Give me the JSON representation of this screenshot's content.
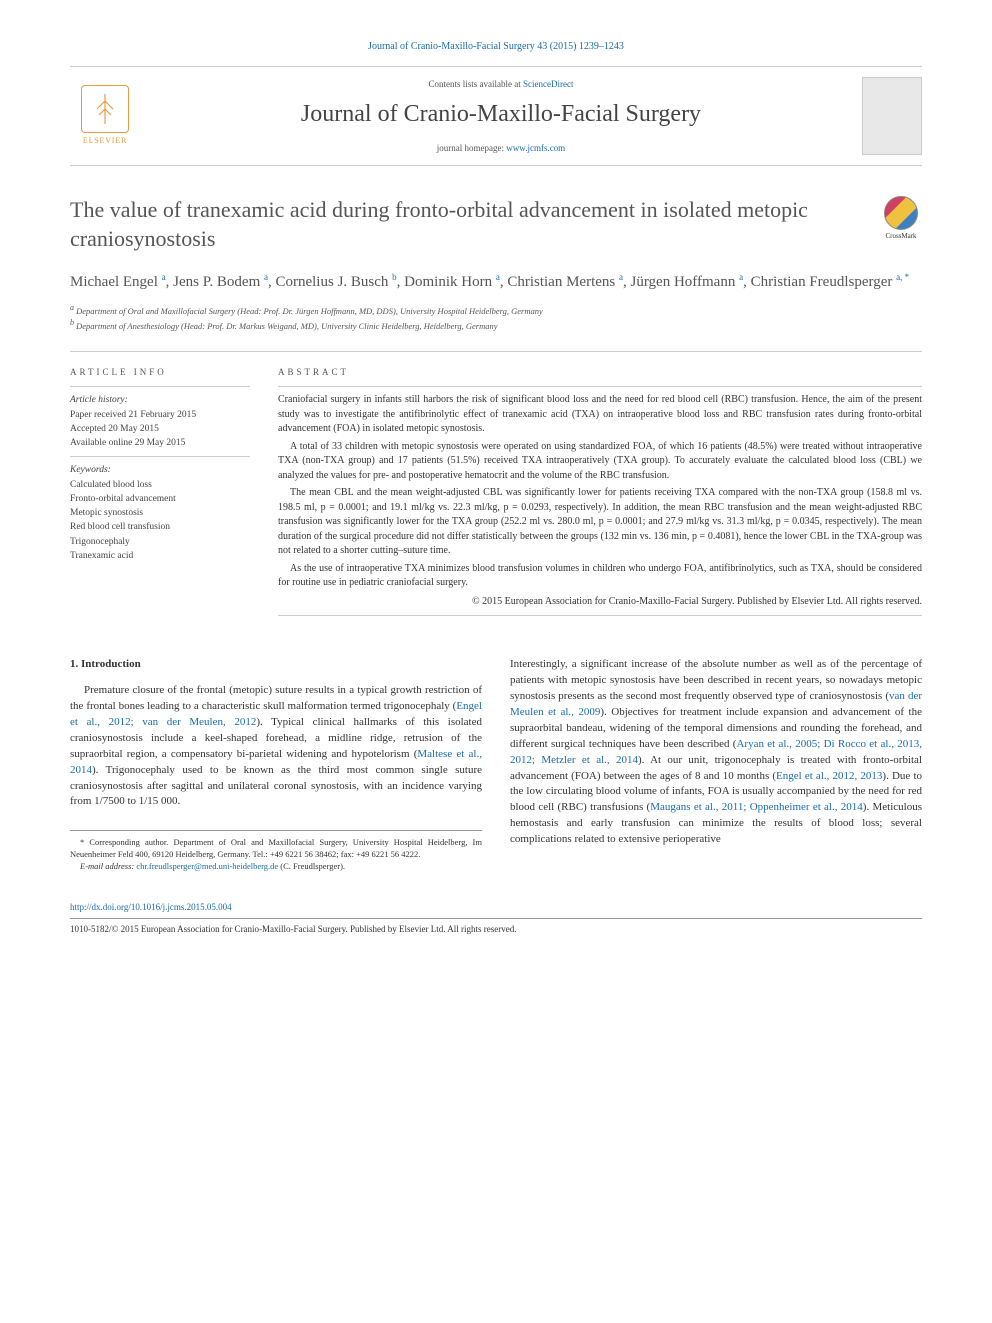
{
  "citation": "Journal of Cranio-Maxillo-Facial Surgery 43 (2015) 1239–1243",
  "masthead": {
    "contents_prefix": "Contents lists available at ",
    "contents_link": "ScienceDirect",
    "journal_name": "Journal of Cranio-Maxillo-Facial Surgery",
    "homepage_prefix": "journal homepage: ",
    "homepage_link": "www.jcmfs.com",
    "publisher_label": "ELSEVIER"
  },
  "crossmark_label": "CrossMark",
  "title": "The value of tranexamic acid during fronto-orbital advancement in isolated metopic craniosynostosis",
  "authors_html": "Michael Engel <sup>a</sup>, Jens P. Bodem <sup>a</sup>, Cornelius J. Busch <sup>b</sup>, Dominik Horn <sup>a</sup>, Christian Mertens <sup>a</sup>, Jürgen Hoffmann <sup>a</sup>, Christian Freudlsperger <sup>a, *</sup>",
  "affiliations": {
    "a": "Department of Oral and Maxillofacial Surgery (Head: Prof. Dr. Jürgen Hoffmann, MD, DDS), University Hospital Heidelberg, Germany",
    "b": "Department of Anesthesiology (Head: Prof. Dr. Markus Weigand, MD), University Clinic Heidelberg, Heidelberg, Germany"
  },
  "article_info": {
    "label": "ARTICLE INFO",
    "history_label": "Article history:",
    "history": [
      "Paper received 21 February 2015",
      "Accepted 20 May 2015",
      "Available online 29 May 2015"
    ],
    "keywords_label": "Keywords:",
    "keywords": [
      "Calculated blood loss",
      "Fronto-orbital advancement",
      "Metopic synostosis",
      "Red blood cell transfusion",
      "Trigonocephaly",
      "Tranexamic acid"
    ]
  },
  "abstract": {
    "label": "ABSTRACT",
    "paragraphs": [
      "Craniofacial surgery in infants still harbors the risk of significant blood loss and the need for red blood cell (RBC) transfusion. Hence, the aim of the present study was to investigate the antifibrinolytic effect of tranexamic acid (TXA) on intraoperative blood loss and RBC transfusion rates during fronto-orbital advancement (FOA) in isolated metopic synostosis.",
      "A total of 33 children with metopic synostosis were operated on using standardized FOA, of which 16 patients (48.5%) were treated without intraoperative TXA (non-TXA group) and 17 patients (51.5%) received TXA intraoperatively (TXA group). To accurately evaluate the calculated blood loss (CBL) we analyzed the values for pre- and postoperative hematocrit and the volume of the RBC transfusion.",
      "The mean CBL and the mean weight-adjusted CBL was significantly lower for patients receiving TXA compared with the non-TXA group (158.8 ml vs. 198.5 ml, p = 0.0001; and 19.1 ml/kg vs. 22.3 ml/kg, p = 0.0293, respectively). In addition, the mean RBC transfusion and the mean weight-adjusted RBC transfusion was significantly lower for the TXA group (252.2 ml vs. 280.0 ml, p = 0.0001; and 27.9 ml/kg vs. 31.3 ml/kg, p = 0.0345, respectively). The mean duration of the surgical procedure did not differ statistically between the groups (132 min vs. 136 min, p = 0.4081), hence the lower CBL in the TXA-group was not related to a shorter cutting–suture time.",
      "As the use of intraoperative TXA minimizes blood transfusion volumes in children who undergo FOA, antifibrinolytics, such as TXA, should be considered for routine use in pediatric craniofacial surgery."
    ],
    "copyright": "© 2015 European Association for Cranio-Maxillo-Facial Surgery. Published by Elsevier Ltd. All rights reserved."
  },
  "section1": {
    "heading": "1. Introduction",
    "col1": "Premature closure of the frontal (metopic) suture results in a typical growth restriction of the frontal bones leading to a characteristic skull malformation termed trigonocephaly (<a>Engel et al., 2012; van der Meulen, 2012</a>). Typical clinical hallmarks of this isolated craniosynostosis include a keel-shaped forehead, a midline ridge, retrusion of the supraorbital region, a compensatory bi-parietal widening and hypotelorism (<a>Maltese et al., 2014</a>). Trigonocephaly used to be known as the third most common single suture craniosynostosis after sagittal and unilateral coronal synostosis, with an incidence varying from 1/7500 to 1/15 000.",
    "col2": "Interestingly, a significant increase of the absolute number as well as of the percentage of patients with metopic synostosis have been described in recent years, so nowadays metopic synostosis presents as the second most frequently observed type of craniosynostosis (<a>van der Meulen et al., 2009</a>). Objectives for treatment include expansion and advancement of the supraorbital bandeau, widening of the temporal dimensions and rounding the forehead, and different surgical techniques have been described (<a>Aryan et al., 2005; Di Rocco et al., 2013, 2012; Metzler et al., 2014</a>). At our unit, trigonocephaly is treated with fronto-orbital advancement (FOA) between the ages of 8 and 10 months (<a>Engel et al., 2012, 2013</a>). Due to the low circulating blood volume of infants, FOA is usually accompanied by the need for red blood cell (RBC) transfusions (<a>Maugans et al., 2011; Oppenheimer et al., 2014</a>). Meticulous hemostasis and early transfusion can minimize the results of blood loss; several complications related to extensive perioperative"
  },
  "corr_note": {
    "text": "* Corresponding author. Department of Oral and Maxillofacial Surgery, University Hospital Heidelberg, Im Neuenheimer Feld 400, 69120 Heidelberg, Germany. Tel.: +49 6221 56 38462; fax: +49 6221 56 4222.",
    "email_label": "E-mail address:",
    "email": "chr.freudlsperger@med.uni-heidelberg.de",
    "email_name": "(C. Freudlsperger)."
  },
  "footer": {
    "doi": "http://dx.doi.org/10.1016/j.jcms.2015.05.004",
    "issn_line": "1010-5182/© 2015 European Association for Cranio-Maxillo-Facial Surgery. Published by Elsevier Ltd. All rights reserved."
  },
  "colors": {
    "link": "#1a6ca8",
    "text": "#333333",
    "muted": "#555555",
    "rule": "#cccccc",
    "elsevier": "#e89b3f"
  },
  "typography": {
    "title_fontsize": 22,
    "journal_fontsize": 24,
    "authors_fontsize": 15,
    "body_fontsize": 11,
    "abstract_fontsize": 10,
    "small_fontsize": 9
  }
}
